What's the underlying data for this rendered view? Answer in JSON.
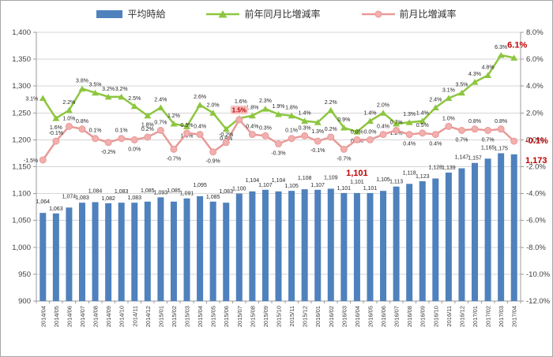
{
  "legend": {
    "bar_label": "平均時給",
    "yoy_label": "前年同月比増減率",
    "mom_label": "前月比増減率"
  },
  "colors": {
    "bar": "#4F81BD",
    "yoy_line": "#8DC63F",
    "mom_line": "#E79A98",
    "mom_marker_fill": "#F2AFAD",
    "emphasis_red": "#C00000",
    "spike_badge_bg": "#F5C3C1",
    "grid": "#D6D6D6",
    "axis": "#9B9B9B",
    "tick_text": "#404040",
    "data_label": "#262626"
  },
  "chart_data": {
    "type": "bar",
    "subtype": "combo-bar-line",
    "categories": [
      "2014/04",
      "2014/05",
      "2014/06",
      "2014/07",
      "2014/08",
      "2014/09",
      "2014/10",
      "2014/11",
      "2014/12",
      "2015/01",
      "2015/02",
      "2015/03",
      "2015/04",
      "2015/05",
      "2015/06",
      "2015/07",
      "2015/08",
      "2015/09",
      "2015/10",
      "2015/11",
      "2015/12",
      "2016/01",
      "2016/02",
      "2016/03",
      "2016/04",
      "2016/05",
      "2016/06",
      "2016/07",
      "2016/08",
      "2016/09",
      "2016/10",
      "2016/11",
      "2016/12",
      "2017/01",
      "2017/02",
      "2017/03",
      "2017/04"
    ],
    "series": [
      {
        "name": "平均時給",
        "type": "bar",
        "axis": "left",
        "values": [
          1064,
          1063,
          1074,
          1083,
          1084,
          1082,
          1083,
          1083,
          1085,
          1093,
          1085,
          1091,
          1095,
          1085,
          1083,
          1100,
          1104,
          1107,
          1104,
          1105,
          1108,
          1107,
          1109,
          1101,
          1101,
          1101,
          1105,
          1113,
          1118,
          1123,
          1128,
          1139,
          1147,
          1157,
          1165,
          1175,
          1173
        ]
      },
      {
        "name": "前年同月比増減率",
        "type": "line",
        "marker": "triangle",
        "axis": "right",
        "values": [
          3.1,
          1.6,
          2.2,
          3.8,
          3.5,
          3.2,
          3.2,
          2.5,
          1.8,
          2.4,
          1.2,
          1.0,
          2.6,
          2.0,
          0.8,
          1.6,
          1.8,
          2.3,
          1.9,
          1.8,
          1.4,
          1.3,
          2.2,
          0.9,
          0.6,
          1.4,
          2.0,
          1.2,
          1.3,
          1.4,
          2.4,
          3.1,
          3.5,
          4.3,
          4.8,
          6.3,
          6.1
        ]
      },
      {
        "name": "前月比増減率",
        "type": "line",
        "marker": "circle",
        "axis": "right",
        "values": [
          -1.5,
          -0.1,
          1.0,
          0.8,
          0.1,
          -0.2,
          0.1,
          0.0,
          0.2,
          0.7,
          -0.7,
          0.5,
          0.4,
          -0.9,
          -0.2,
          1.5,
          0.4,
          0.3,
          -0.3,
          0.1,
          0.3,
          -0.1,
          0.2,
          -0.7,
          0.0,
          0.0,
          0.4,
          0.7,
          0.4,
          0.5,
          0.4,
          1.0,
          0.7,
          0.8,
          0.7,
          0.8,
          -0.1
        ]
      }
    ],
    "left_axis": {
      "min": 900,
      "max": 1400,
      "step": 50,
      "tick_labels": [
        "1,400",
        "1,350",
        "1,300",
        "1,250",
        "1,200",
        "1,150",
        "1,100",
        "1,050",
        "1,000",
        "950",
        "900"
      ]
    },
    "right_axis": {
      "min": -12,
      "max": 8,
      "step": 2,
      "tick_labels": [
        "8.0%",
        "6.0%",
        "4.0%",
        "2.0%",
        "0.0%",
        "-2.0%",
        "-4.0%",
        "-6.0%",
        "-8.0%",
        "-10.0%",
        "-12.0%"
      ]
    },
    "grid": true,
    "legend_position": "top",
    "annotations": {
      "dip": {
        "category": "2016/04",
        "label": "1,101"
      },
      "spike": {
        "category": "2015/07",
        "label": "1.5%"
      },
      "last_point": {
        "category": "2017/04",
        "bar_label": "1,173",
        "yoy_label": "6.1%",
        "mom_label": "-0.1%"
      }
    }
  }
}
